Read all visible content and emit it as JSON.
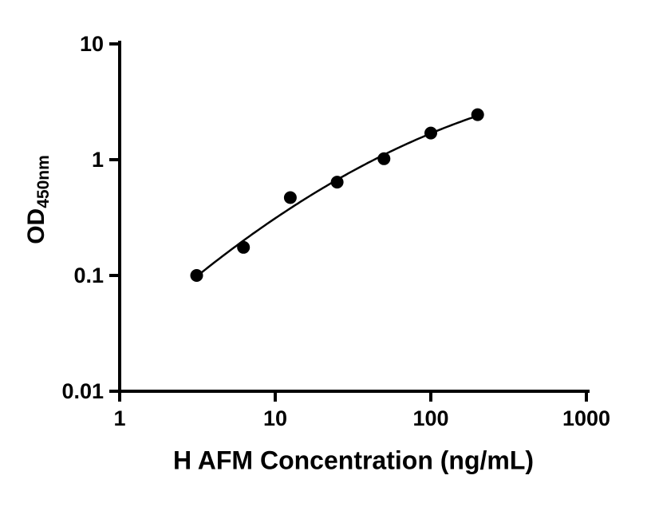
{
  "figure": {
    "background": "#ffffff",
    "axis_color": "#000000",
    "point_color": "#000000",
    "curve_color": "#000000"
  },
  "chart_data": {
    "type": "scatter",
    "title": "",
    "xlabel": "H AFM Concentration (ng/mL)",
    "ylabel_main": "OD",
    "ylabel_sub": "450nm",
    "x_scale": "log",
    "y_scale": "log",
    "xlim": [
      1,
      1000
    ],
    "ylim": [
      0.01,
      10
    ],
    "x_ticks": [
      1,
      10,
      100,
      1000
    ],
    "x_tick_labels": [
      "1",
      "10",
      "100",
      "1000"
    ],
    "y_ticks": [
      10,
      1,
      0.1,
      0.01
    ],
    "y_tick_labels": [
      "10",
      "1",
      "0.1",
      "0.01"
    ],
    "grid": false,
    "legend": "none",
    "series": [
      {
        "x": [
          3.125,
          6.25,
          12.5,
          25,
          50,
          100,
          200
        ],
        "y": [
          0.1,
          0.175,
          0.47,
          0.64,
          1.02,
          1.7,
          2.45
        ],
        "marker": "circle",
        "marker_radius": 8,
        "fit": "log-quadratic"
      }
    ]
  }
}
